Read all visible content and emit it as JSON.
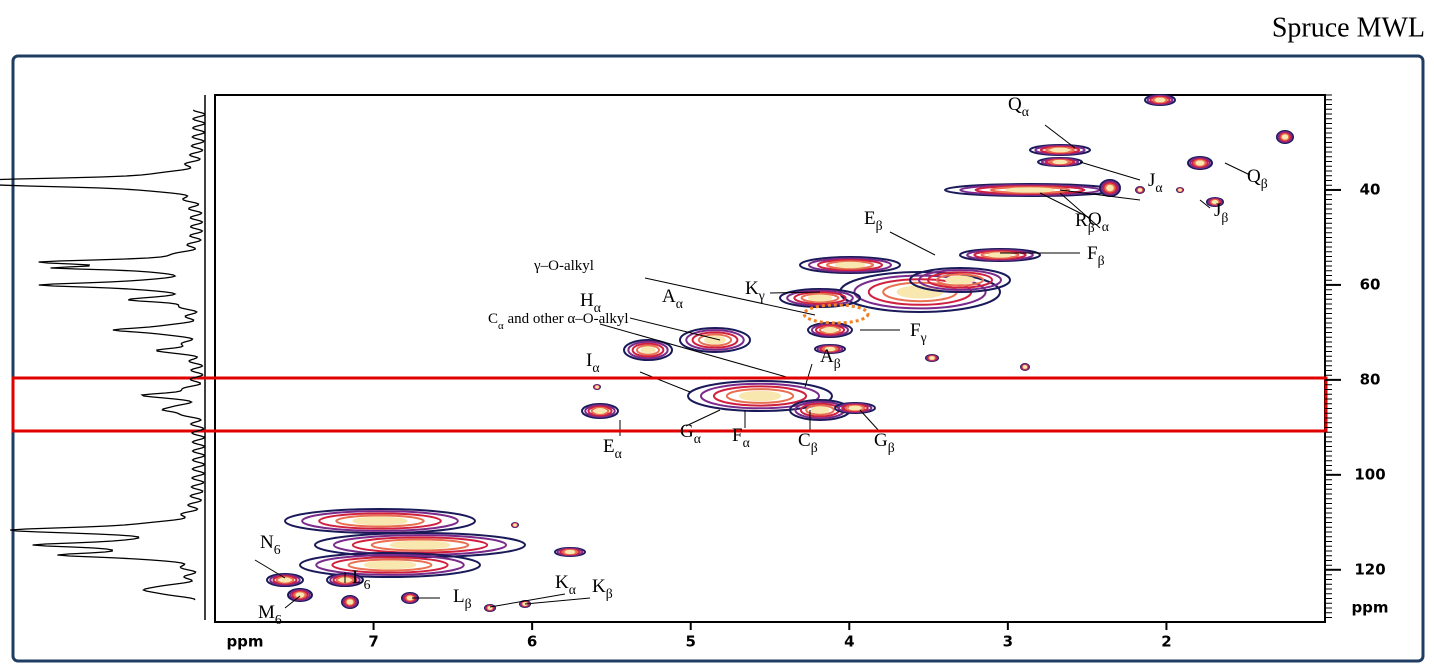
{
  "chart_data": {
    "type": "contour",
    "title": "Spruce MWL",
    "x_label": "ppm",
    "y_label": "ppm",
    "xlim": [
      8,
      1
    ],
    "xticks": [
      7,
      6,
      5,
      4,
      3,
      2
    ],
    "ylim": [
      20,
      131
    ],
    "yticks": [
      40,
      60,
      80,
      100,
      120
    ],
    "annotations": [
      {
        "text": "Q",
        "sub": "α"
      },
      {
        "text": "Q",
        "sub": "β"
      },
      {
        "text": "J",
        "sub": "α"
      },
      {
        "text": "J",
        "sub": "β"
      },
      {
        "text": "R",
        "sub": "β"
      },
      {
        "text": "O",
        "sub": "α"
      },
      {
        "text": "E",
        "sub": "β"
      },
      {
        "text": "F",
        "sub": "β"
      },
      {
        "text": "γ–O-alkyl"
      },
      {
        "text": "K",
        "sub": "γ"
      },
      {
        "text": "H",
        "sub": "α"
      },
      {
        "text": "A",
        "sub": "α"
      },
      {
        "text": "C",
        "sub": "α",
        "tail": " and other α–O-alkyl"
      },
      {
        "text": "F",
        "sub": "γ"
      },
      {
        "text": "I",
        "sub": "α"
      },
      {
        "text": "A",
        "sub": "β"
      },
      {
        "text": "E",
        "sub": "α"
      },
      {
        "text": "G",
        "sub": "α"
      },
      {
        "text": "F",
        "sub": "α"
      },
      {
        "text": "C",
        "sub": "β"
      },
      {
        "text": "G",
        "sub": "β"
      },
      {
        "text": "N",
        "sub": "6"
      },
      {
        "text": "L",
        "sub": "6"
      },
      {
        "text": "M",
        "sub": "6"
      },
      {
        "text": "L",
        "sub": "β"
      },
      {
        "text": "K",
        "sub": "α"
      },
      {
        "text": "K",
        "sub": "β"
      }
    ]
  }
}
